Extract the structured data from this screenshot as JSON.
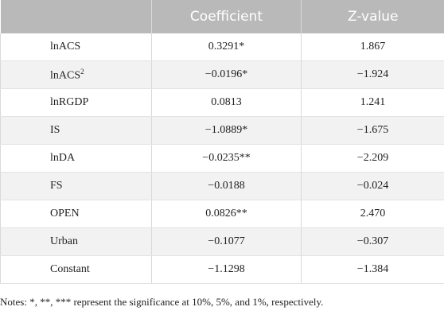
{
  "table": {
    "header": [
      "Coefficient",
      "Z-value"
    ],
    "rows": [
      [
        "lnACS",
        "0.3291*",
        "1.867"
      ],
      [
        {
          "text": "lnACS",
          "sup": "2"
        },
        "−0.0196*",
        "−1.924"
      ],
      [
        "lnRGDP",
        "0.0813",
        "1.241"
      ],
      [
        "IS",
        "−1.0889*",
        "−1.675"
      ],
      [
        "lnDA",
        "−0.0235**",
        "−2.209"
      ],
      [
        "FS",
        "−0.0188",
        "−0.024"
      ],
      [
        "OPEN",
        "0.0826**",
        "2.470"
      ],
      [
        "Urban",
        "−0.1077",
        "−0.307"
      ],
      [
        "Constant",
        "−1.1298",
        "−1.384"
      ]
    ],
    "notes": "Notes: *, **, *** represent the significance at 10%, 5%, and 1%, respectively."
  }
}
